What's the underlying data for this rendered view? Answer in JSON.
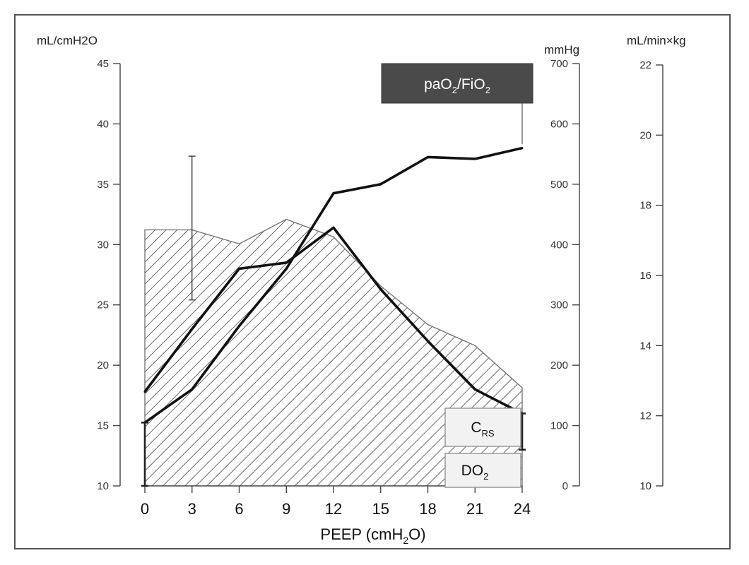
{
  "chart_data": {
    "type": "line",
    "xlabel": "PEEP (cmH2O)",
    "xlabel_parts": {
      "pre": "PEEP (cmH",
      "sub": "2",
      "post": "O)"
    },
    "x": [
      0,
      3,
      6,
      9,
      12,
      15,
      18,
      21,
      24
    ],
    "xlim": [
      0,
      24
    ],
    "axes": {
      "left": {
        "unit": "mL/cmH2O",
        "ticks": [
          10,
          15,
          20,
          25,
          30,
          35,
          40,
          45
        ],
        "range": [
          10,
          45
        ]
      },
      "middle": {
        "unit": "mmHg",
        "ticks": [
          0,
          100,
          200,
          300,
          400,
          500,
          600,
          700
        ],
        "range": [
          0,
          700
        ]
      },
      "right": {
        "unit": "mL/min×kg",
        "ticks": [
          10,
          12,
          14,
          16,
          18,
          20,
          22
        ],
        "range": [
          10,
          22
        ]
      }
    },
    "series": [
      {
        "name": "paO2/FiO2",
        "label_parts": {
          "a": "paO",
          "a_sub": "2",
          "b": "/FiO",
          "b_sub": "2"
        },
        "axis": "middle",
        "style": "line",
        "values": [
          105,
          160,
          265,
          360,
          485,
          500,
          545,
          542,
          560
        ],
        "error": [
          {
            "x": 0,
            "lo": 0,
            "hi": 105
          }
        ]
      },
      {
        "name": "CRS",
        "label_parts": {
          "a": "C",
          "a_sub": "RS"
        },
        "axis": "left",
        "style": "line",
        "values": [
          17.8,
          23.0,
          28.0,
          28.5,
          31.4,
          26.3,
          22.0,
          18.0,
          16.0
        ],
        "error": [
          {
            "x": 24,
            "lo": 13.0,
            "hi": 16.0
          }
        ]
      },
      {
        "name": "DO2",
        "label_parts": {
          "a": "DO",
          "a_sub": "2"
        },
        "axis": "right",
        "style": "hatched-area",
        "values": [
          17.3,
          17.3,
          16.9,
          17.6,
          17.1,
          15.7,
          14.6,
          14.0,
          12.8
        ],
        "error": [
          {
            "x": 3,
            "lo": 15.3,
            "hi": 19.4
          }
        ]
      }
    ],
    "colors": {
      "line": "#111111",
      "area_stroke": "#777777",
      "label_box_dark": "#4a4a4a",
      "label_box_light": "#f2f2f2"
    },
    "grid": false
  }
}
